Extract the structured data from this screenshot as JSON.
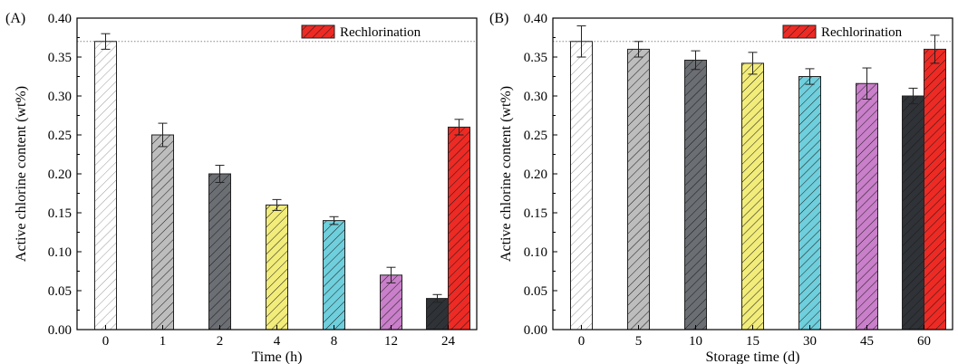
{
  "chart_data": [
    {
      "type": "bar",
      "panel_label": "(A)",
      "xlabel": "Time (h)",
      "ylabel": "Active chlorine content (wt%)",
      "ylim": [
        0,
        0.4
      ],
      "yticks": [
        "0.00",
        "0.05",
        "0.10",
        "0.15",
        "0.20",
        "0.25",
        "0.30",
        "0.35",
        "0.40"
      ],
      "categories": [
        "0",
        "1",
        "2",
        "4",
        "8",
        "12",
        "24"
      ],
      "reference_line": 0.37,
      "grid": false,
      "legend": {
        "label": "Rechlorination",
        "placement": "top-right"
      },
      "bars": [
        {
          "category": "0",
          "value": 0.37,
          "error": 0.01,
          "fill": "#ffffff"
        },
        {
          "category": "1",
          "value": 0.25,
          "error": 0.015,
          "fill": "#bdbdbd"
        },
        {
          "category": "2",
          "value": 0.2,
          "error": 0.011,
          "fill": "#6b6e73"
        },
        {
          "category": "4",
          "value": 0.16,
          "error": 0.007,
          "fill": "#f2ec7a"
        },
        {
          "category": "8",
          "value": 0.14,
          "error": 0.005,
          "fill": "#6fcfdc"
        },
        {
          "category": "12",
          "value": 0.07,
          "error": 0.01,
          "fill": "#c97fc9"
        },
        {
          "category": "24",
          "value": 0.04,
          "error": 0.005,
          "fill": "#2f3237"
        },
        {
          "category": "24",
          "value": 0.26,
          "error": 0.01,
          "fill": "#ee2a24",
          "rechlorination": true
        }
      ]
    },
    {
      "type": "bar",
      "panel_label": "(B)",
      "xlabel": "Storage time (d)",
      "ylabel": "Active chlorine content (wt%)",
      "ylim": [
        0,
        0.4
      ],
      "yticks": [
        "0.00",
        "0.05",
        "0.10",
        "0.15",
        "0.20",
        "0.25",
        "0.30",
        "0.35",
        "0.40"
      ],
      "categories": [
        "0",
        "5",
        "10",
        "15",
        "30",
        "45",
        "60"
      ],
      "reference_line": 0.37,
      "grid": false,
      "legend": {
        "label": "Rechlorination",
        "placement": "top-right"
      },
      "bars": [
        {
          "category": "0",
          "value": 0.37,
          "error": 0.02,
          "fill": "#ffffff"
        },
        {
          "category": "5",
          "value": 0.36,
          "error": 0.01,
          "fill": "#bdbdbd"
        },
        {
          "category": "10",
          "value": 0.346,
          "error": 0.012,
          "fill": "#6b6e73"
        },
        {
          "category": "15",
          "value": 0.342,
          "error": 0.014,
          "fill": "#f2ec7a"
        },
        {
          "category": "30",
          "value": 0.325,
          "error": 0.01,
          "fill": "#6fcfdc"
        },
        {
          "category": "45",
          "value": 0.316,
          "error": 0.02,
          "fill": "#c97fc9"
        },
        {
          "category": "60",
          "value": 0.3,
          "error": 0.01,
          "fill": "#2f3237"
        },
        {
          "category": "60",
          "value": 0.36,
          "error": 0.018,
          "fill": "#ee2a24",
          "rechlorination": true
        }
      ]
    }
  ]
}
